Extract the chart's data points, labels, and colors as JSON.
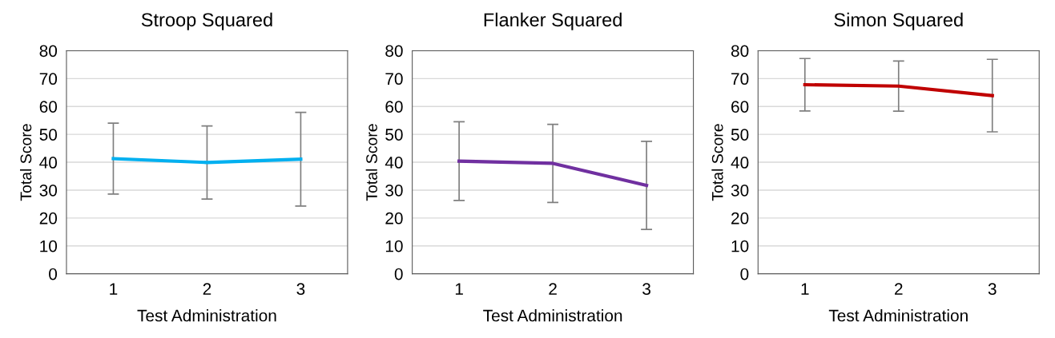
{
  "chart_data": [
    {
      "type": "line",
      "title": "Stroop Squared",
      "xlabel": "Test Administration",
      "ylabel": "Total Score",
      "categories": [
        "1",
        "2",
        "3"
      ],
      "series": [
        {
          "color": "#00b0f0",
          "values": [
            41.3,
            39.9,
            41.1
          ],
          "errors": [
            12.7,
            13.1,
            16.8
          ]
        }
      ],
      "ylim": [
        0,
        80
      ],
      "yticks": [
        0,
        10,
        20,
        30,
        40,
        50,
        60,
        70,
        80
      ],
      "grid": "y",
      "legend": false,
      "marker": "none",
      "line_style": "solid"
    },
    {
      "type": "line",
      "title": "Flanker Squared",
      "xlabel": "Test Administration",
      "ylabel": "Total Score",
      "categories": [
        "1",
        "2",
        "3"
      ],
      "series": [
        {
          "color": "#7030a0",
          "values": [
            40.4,
            39.6,
            31.7
          ],
          "errors": [
            14.1,
            14.0,
            15.8
          ]
        }
      ],
      "ylim": [
        0,
        80
      ],
      "yticks": [
        0,
        10,
        20,
        30,
        40,
        50,
        60,
        70,
        80
      ],
      "grid": "y",
      "legend": false,
      "marker": "none",
      "line_style": "solid"
    },
    {
      "type": "line",
      "title": "Simon Squared",
      "xlabel": "Test Administration",
      "ylabel": "Total Score",
      "categories": [
        "1",
        "2",
        "3"
      ],
      "series": [
        {
          "color": "#c00000",
          "values": [
            67.8,
            67.3,
            63.9
          ],
          "errors": [
            9.4,
            9.0,
            13.0
          ]
        }
      ],
      "ylim": [
        0,
        80
      ],
      "yticks": [
        0,
        10,
        20,
        30,
        40,
        50,
        60,
        70,
        80
      ],
      "grid": "y",
      "legend": false,
      "marker": "none",
      "line_style": "solid"
    }
  ]
}
